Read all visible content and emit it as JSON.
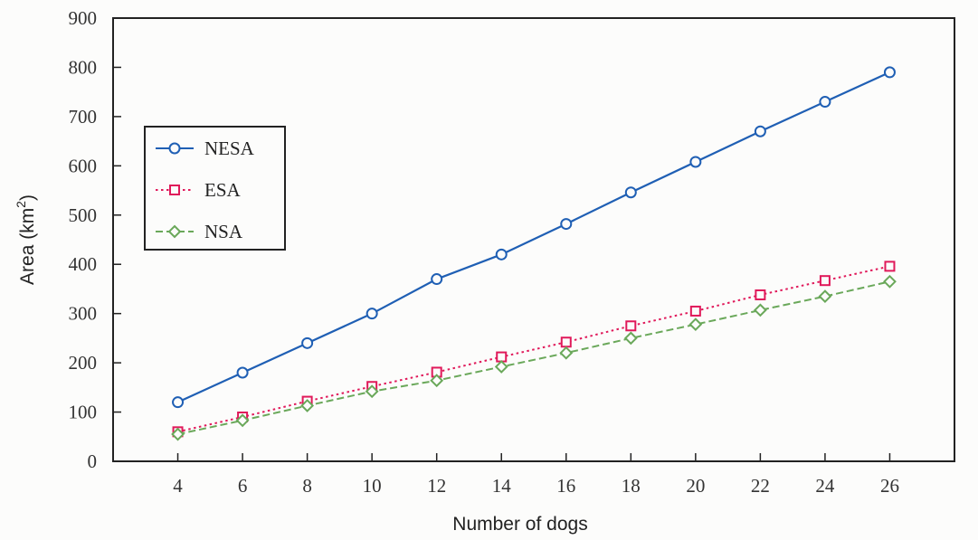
{
  "chart_data": {
    "type": "line",
    "title": "",
    "xlabel": "Number of dogs",
    "ylabel": "Area (km²)",
    "ylabel_parts": {
      "main": "Area (km",
      "sup": "2",
      "close": ")"
    },
    "xlim": [
      2,
      28
    ],
    "ylim": [
      0,
      900
    ],
    "x": [
      4,
      6,
      8,
      10,
      12,
      14,
      16,
      18,
      20,
      22,
      24,
      26
    ],
    "x_ticks": [
      4,
      6,
      8,
      10,
      12,
      14,
      16,
      18,
      20,
      22,
      24,
      26
    ],
    "y_ticks": [
      0,
      100,
      200,
      300,
      400,
      500,
      600,
      700,
      800,
      900
    ],
    "grid": false,
    "legend_position": "left",
    "series": [
      {
        "name": "NESA",
        "color": "#1f5fb4",
        "marker": "circle",
        "line": "solid",
        "values": [
          120,
          180,
          240,
          300,
          370,
          420,
          482,
          546,
          608,
          670,
          730,
          790
        ]
      },
      {
        "name": "ESA",
        "color": "#e0195a",
        "marker": "square",
        "line": "dotted",
        "values": [
          60,
          90,
          122,
          152,
          181,
          212,
          242,
          275,
          305,
          338,
          367,
          396
        ]
      },
      {
        "name": "NSA",
        "color": "#6aa85a",
        "marker": "diamond",
        "line": "dashed",
        "values": [
          55,
          83,
          113,
          142,
          164,
          192,
          220,
          250,
          278,
          307,
          335,
          365
        ]
      }
    ]
  }
}
